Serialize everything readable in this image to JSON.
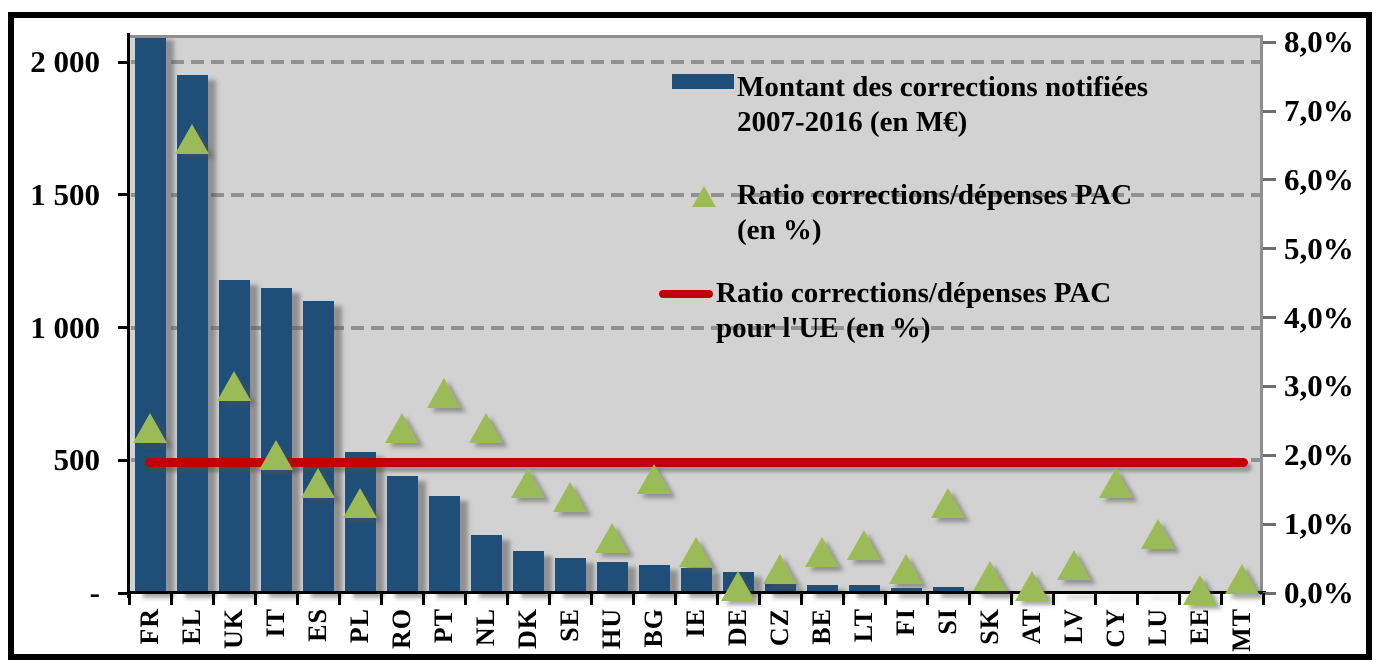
{
  "chart_data": {
    "type": "combo",
    "title": "",
    "categories": [
      "FR",
      "EL",
      "UK",
      "IT",
      "ES",
      "PL",
      "RO",
      "PT",
      "NL",
      "DK",
      "SE",
      "HU",
      "BG",
      "IE",
      "DE",
      "CZ",
      "BE",
      "LT",
      "FI",
      "SI",
      "SK",
      "AT",
      "LV",
      "CY",
      "LU",
      "EE",
      "MT"
    ],
    "series": [
      {
        "name": "Montant des corrections notifiées 2007-2016 (en M€)",
        "type": "bar",
        "axis": "left",
        "color": "#1F4E79",
        "values": [
          2100,
          1950,
          1180,
          1150,
          1100,
          530,
          440,
          365,
          220,
          160,
          130,
          115,
          105,
          93,
          78,
          35,
          30,
          32,
          20,
          22,
          14,
          8,
          8,
          4,
          3,
          2,
          1
        ]
      },
      {
        "name": "Ratio corrections/dépenses PAC (en %)",
        "type": "scatter",
        "marker": "triangle",
        "axis": "right",
        "color": "#9BBB59",
        "values": [
          2.4,
          6.6,
          3.0,
          2.0,
          1.6,
          1.3,
          2.4,
          2.9,
          2.4,
          1.6,
          1.4,
          0.8,
          1.65,
          0.6,
          0.1,
          0.35,
          0.6,
          0.7,
          0.35,
          1.3,
          0.25,
          0.1,
          0.4,
          1.6,
          0.85,
          0.05,
          0.2
        ]
      },
      {
        "name": "Ratio corrections/dépenses PAC pour l'UE (en %)",
        "type": "line-constant",
        "axis": "right",
        "color": "#C00000",
        "value": 1.9
      }
    ],
    "left_axis": {
      "min": 0,
      "max": 2100,
      "tick_values": [
        2000,
        1500,
        1000,
        500,
        0
      ],
      "tick_labels": [
        "2 000",
        "1 500",
        "1 000",
        "500",
        "-"
      ],
      "grid_values": [
        2000,
        1500,
        1000,
        500
      ]
    },
    "right_axis": {
      "min": 0,
      "max": 8,
      "tick_values": [
        8,
        7,
        6,
        5,
        4,
        3,
        2,
        1,
        0
      ],
      "tick_labels": [
        "8,0%",
        "7,0%",
        "6,0%",
        "5,0%",
        "4,0%",
        "3,0%",
        "2,0%",
        "1,0%",
        "0,0%"
      ]
    },
    "plot_background": "#d2d2d2",
    "gridline_color": "#919191",
    "legend_position": "inside-top-right"
  },
  "legend": {
    "items": [
      {
        "marker": "bar-swatch",
        "lines": [
          "Montant des corrections notifiées",
          "2007-2016 (en M€)"
        ]
      },
      {
        "marker": "triangle-marker",
        "lines": [
          "Ratio corrections/dépenses PAC",
          "(en %)"
        ]
      },
      {
        "marker": "line-marker",
        "lines": [
          "Ratio corrections/dépenses PAC",
          "pour l'UE (en %)"
        ]
      }
    ]
  }
}
